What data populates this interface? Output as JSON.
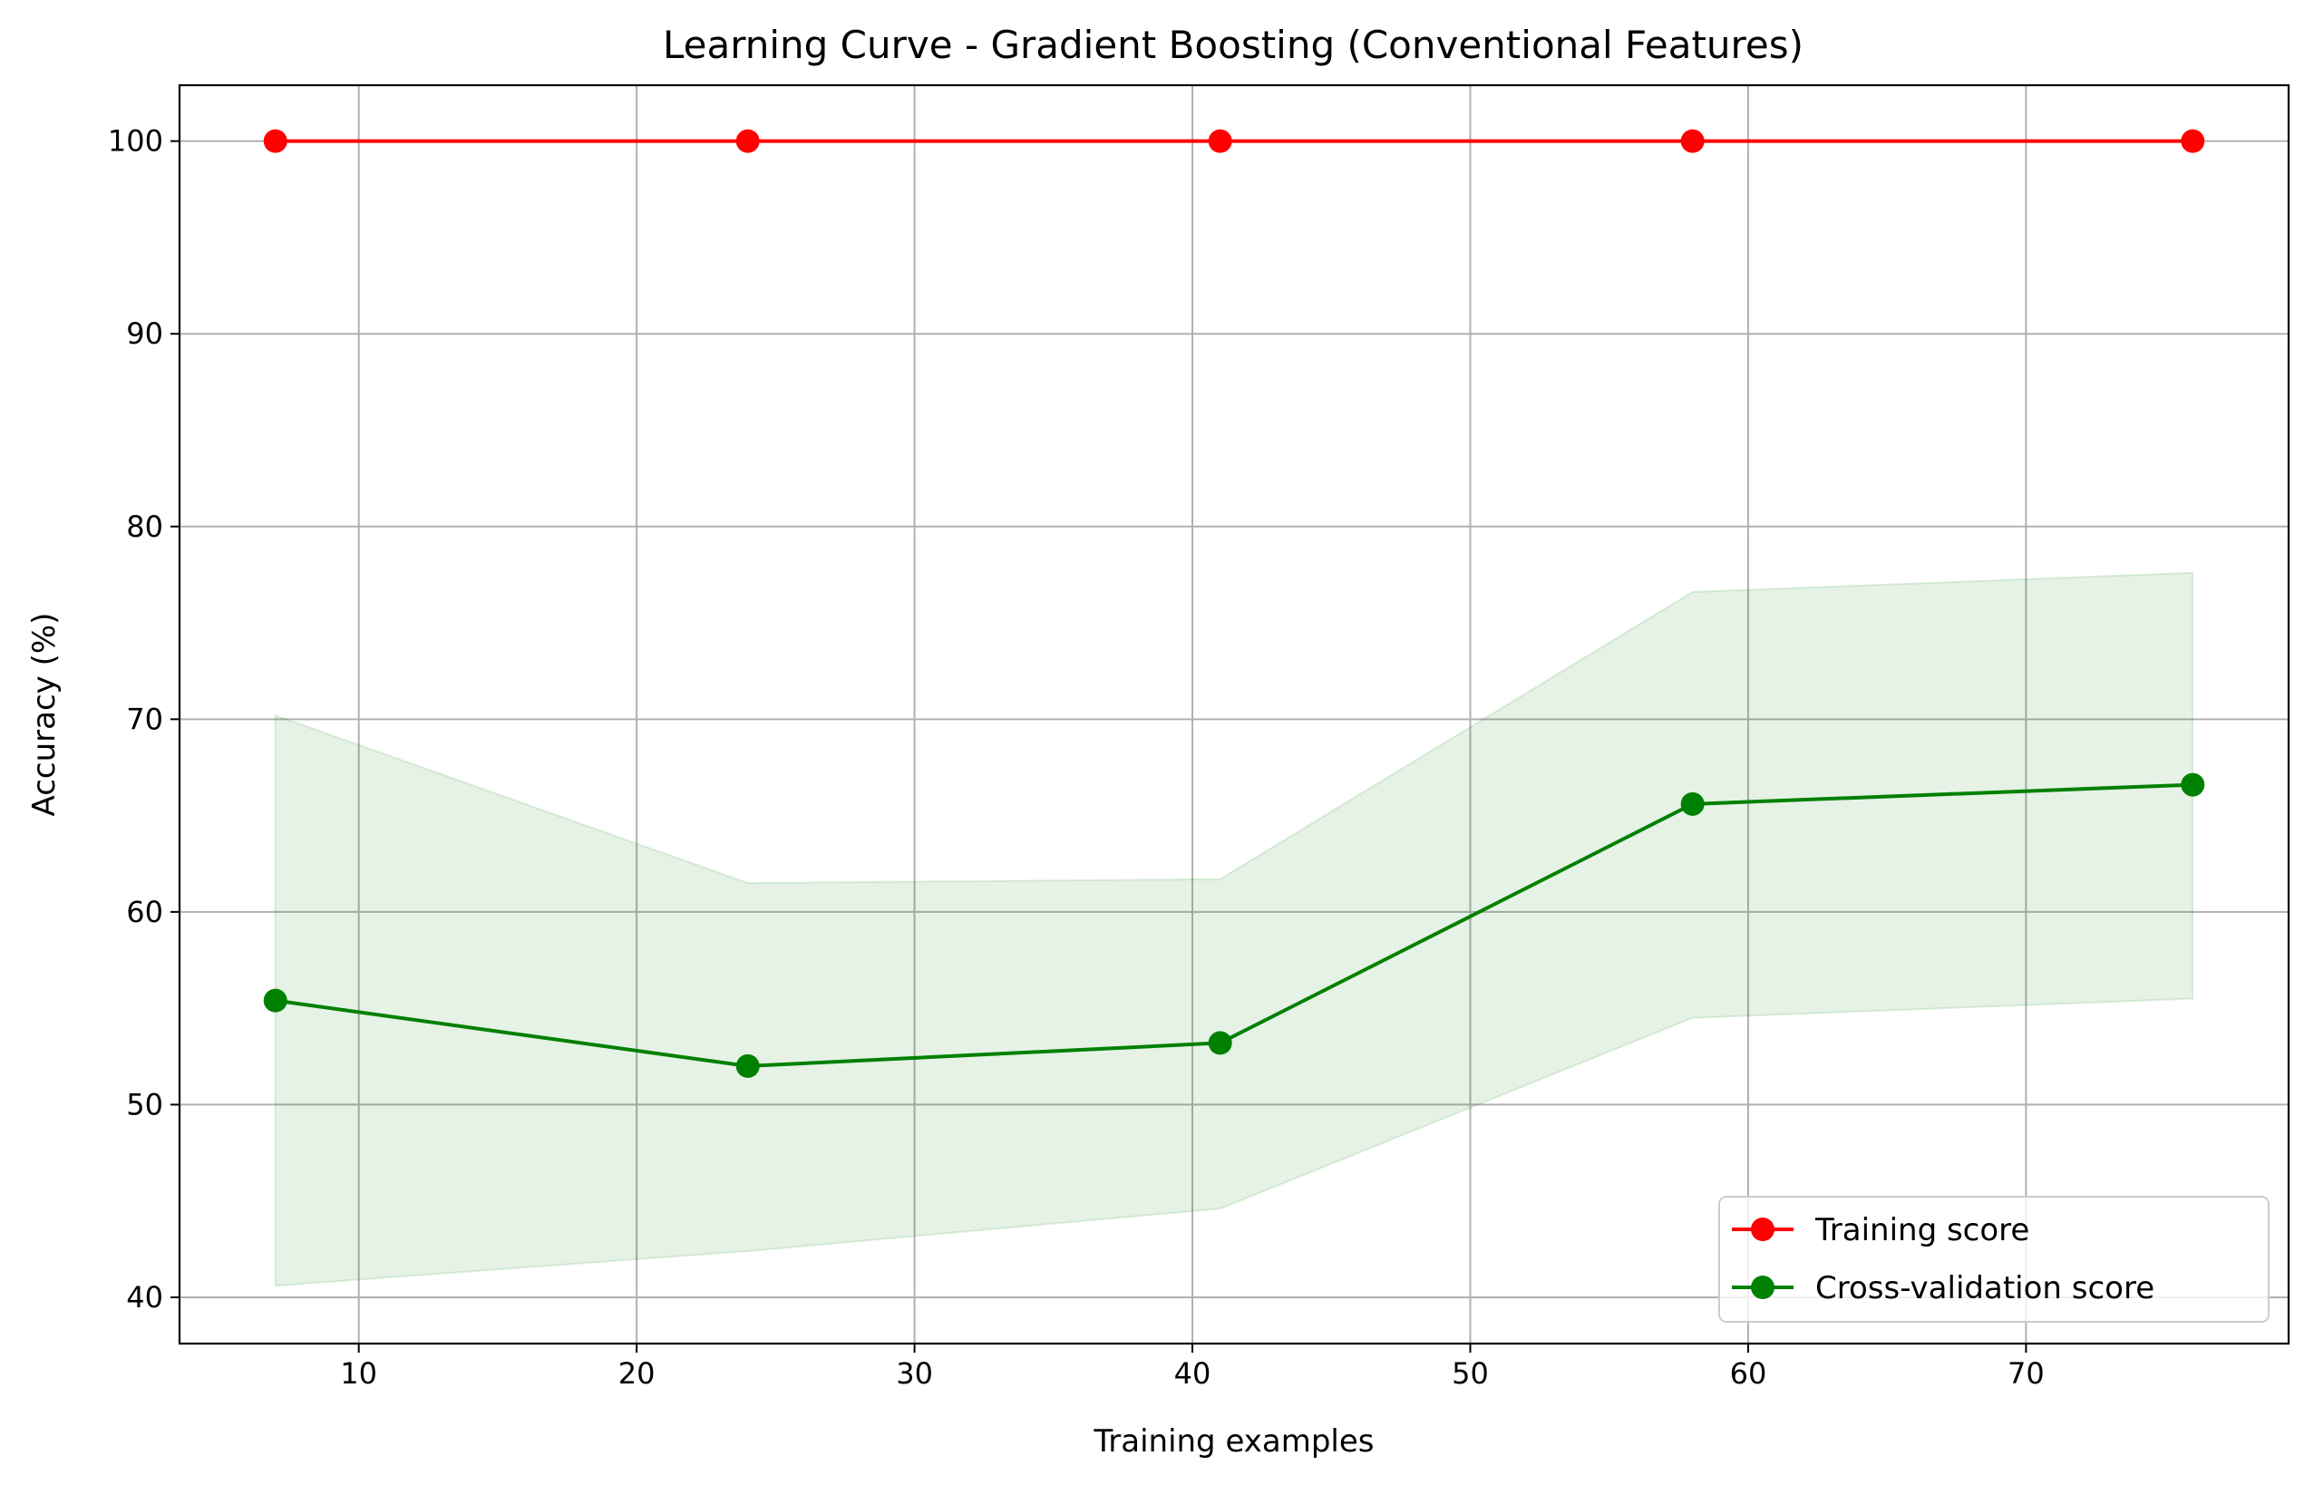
{
  "chart_data": {
    "type": "line",
    "title": "Learning Curve - Gradient Boosting (Conventional Features)",
    "xlabel": "Training examples",
    "ylabel": "Accuracy (%)",
    "xlim": [
      3.55,
      79.45
    ],
    "ylim": [
      37.6,
      102.9
    ],
    "x_ticks": [
      10,
      20,
      30,
      40,
      50,
      60,
      70
    ],
    "y_ticks": [
      40,
      50,
      60,
      70,
      80,
      90,
      100
    ],
    "grid": true,
    "legend_position": "lower-right",
    "x": [
      7,
      24,
      41,
      58,
      76
    ],
    "series": [
      {
        "name": "Training score",
        "color": "#ff0000",
        "marker": "circle",
        "values": [
          100,
          100,
          100,
          100,
          100
        ]
      },
      {
        "name": "Cross-validation score",
        "color": "#008000",
        "marker": "circle",
        "values": [
          55.4,
          52.0,
          53.2,
          65.6,
          66.6
        ],
        "band_lower": [
          40.6,
          42.4,
          44.6,
          54.5,
          55.5
        ],
        "band_upper": [
          70.2,
          61.5,
          61.7,
          76.6,
          77.6
        ],
        "band_color": "#008000"
      }
    ]
  }
}
